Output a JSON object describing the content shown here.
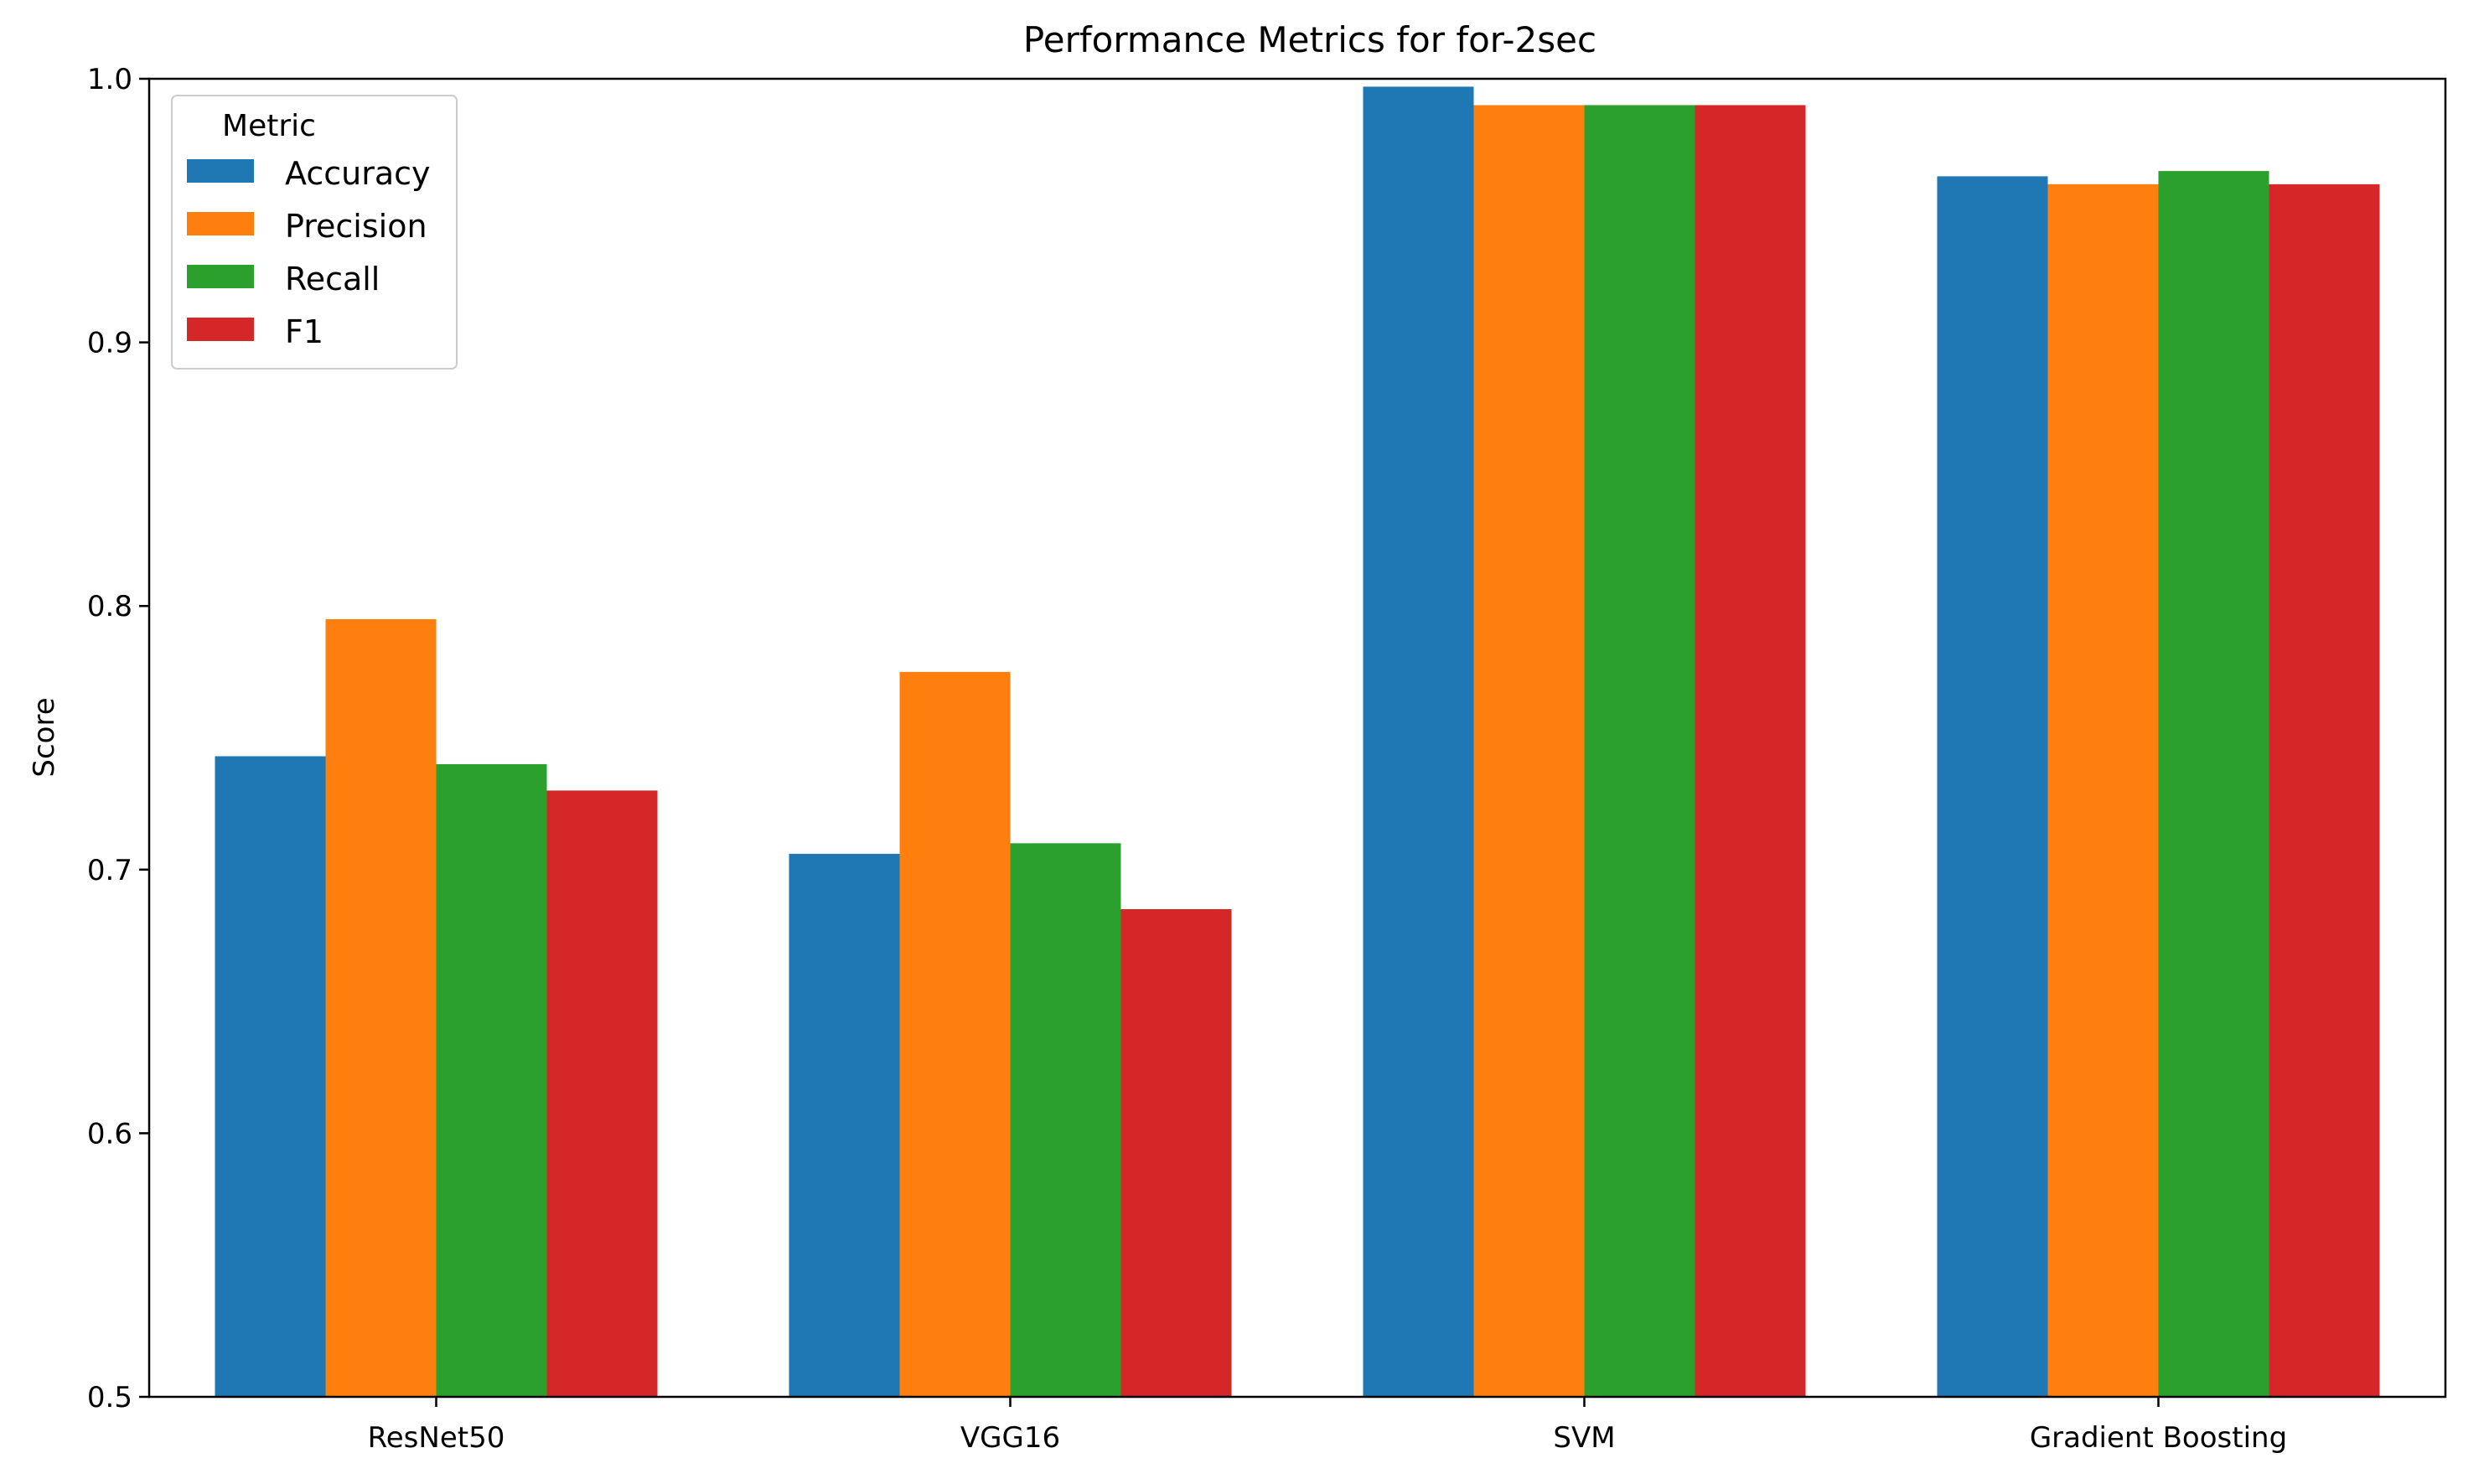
{
  "chart_data": {
    "type": "bar",
    "title": "Performance Metrics for for-2sec",
    "xlabel": "",
    "ylabel": "Score",
    "ylim": [
      0.5,
      1.0
    ],
    "yticks": [
      "0.5",
      "0.6",
      "0.7",
      "0.8",
      "0.9",
      "1.0"
    ],
    "categories": [
      "ResNet50",
      "VGG16",
      "SVM",
      "Gradient Boosting"
    ],
    "series": [
      {
        "name": "Accuracy",
        "color": "#1f77b4",
        "values": [
          0.743,
          0.706,
          0.997,
          0.963
        ]
      },
      {
        "name": "Precision",
        "color": "#ff7f0e",
        "values": [
          0.795,
          0.775,
          0.99,
          0.96
        ]
      },
      {
        "name": "Recall",
        "color": "#2ca02c",
        "values": [
          0.74,
          0.71,
          0.99,
          0.965
        ]
      },
      {
        "name": "F1",
        "color": "#d62728",
        "values": [
          0.73,
          0.685,
          0.99,
          0.96
        ]
      }
    ],
    "legend": {
      "title": "Metric",
      "position": "top-left"
    },
    "grid": false
  }
}
